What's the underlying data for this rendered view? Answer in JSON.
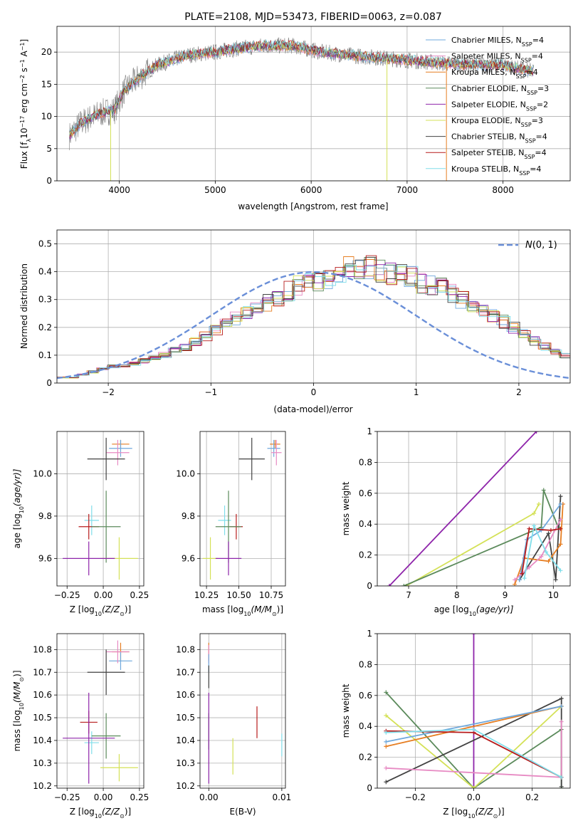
{
  "chart_data": [
    {
      "id": "spectrum",
      "type": "line",
      "title": "PLATE=2108, MJD=53473, FIBERID=0063, z=0.087",
      "xlabel": "wavelength [Angstrom, rest frame]",
      "ylabel_parts": {
        "a": "Flux [f",
        "b": "λ",
        "c": "10",
        "d": "−17",
        "e": " erg cm",
        "f": "−2",
        "g": " s",
        "h": "−1",
        "i": " A",
        "j": "−1",
        "k": "]"
      },
      "xlim": [
        3350,
        8700
      ],
      "ylim": [
        0,
        24
      ],
      "xticks": [
        4000,
        5000,
        6000,
        7000,
        8000
      ],
      "yticks": [
        0,
        5,
        10,
        15,
        20
      ],
      "legend": {
        "position": "top-right",
        "sub": "SSP",
        "entries": [
          {
            "model": "Chabrier MILES, N",
            "n": "=4",
            "color": "#6fa8dc"
          },
          {
            "model": "Salpeter MILES, N",
            "n": "=4",
            "color": "#e78ac3"
          },
          {
            "model": "Kroupa MILES, N",
            "n": "=4",
            "color": "#e67e22"
          },
          {
            "model": "Chabrier ELODIE, N",
            "n": "=3",
            "color": "#5b8a5b"
          },
          {
            "model": "Salpeter ELODIE, N",
            "n": "=2",
            "color": "#8e24aa"
          },
          {
            "model": "Kroupa ELODIE, N",
            "n": "=3",
            "color": "#d4e157"
          },
          {
            "model": "Chabrier STELIB, N",
            "n": "=4",
            "color": "#424242"
          },
          {
            "model": "Salpeter STELIB, N",
            "n": "=4",
            "color": "#b71c1c"
          },
          {
            "model": "Kroupa STELIB, N",
            "n": "=4",
            "color": "#80deea"
          }
        ]
      },
      "continuum_points": [
        [
          3480,
          7
        ],
        [
          3600,
          9
        ],
        [
          3800,
          10.5
        ],
        [
          3950,
          11
        ],
        [
          4050,
          14
        ],
        [
          4200,
          16
        ],
        [
          4400,
          18
        ],
        [
          4700,
          19.5
        ],
        [
          5000,
          20
        ],
        [
          5200,
          20.5
        ],
        [
          5500,
          21
        ],
        [
          5800,
          21
        ],
        [
          6100,
          20
        ],
        [
          6400,
          19.5
        ],
        [
          6800,
          19
        ],
        [
          7200,
          18.5
        ],
        [
          7600,
          18
        ],
        [
          8000,
          18
        ],
        [
          8300,
          17
        ]
      ],
      "data_series_color": "#7f7f7f",
      "artifacts": [
        {
          "x": 6790,
          "y_low": 0
        },
        {
          "x": 7410,
          "y_low": 0
        },
        {
          "x": 3910,
          "y_low": 0
        }
      ]
    },
    {
      "id": "residuals",
      "type": "bar",
      "xlabel": "(data-model)/error",
      "ylabel": "Normed distribution",
      "xlim": [
        -2.5,
        2.5
      ],
      "ylim": [
        0,
        0.55
      ],
      "xticks": [
        -2,
        -1,
        0,
        1,
        2
      ],
      "yticks": [
        0.0,
        0.1,
        0.2,
        0.3,
        0.4,
        0.5
      ],
      "legend": {
        "position": "top-right",
        "label": "N(0, 1)"
      },
      "bin_width": 0.1,
      "bin_start": -2.5,
      "histogram_values": [
        0.02,
        0.02,
        0.03,
        0.04,
        0.05,
        0.06,
        0.06,
        0.07,
        0.08,
        0.09,
        0.1,
        0.12,
        0.13,
        0.15,
        0.17,
        0.19,
        0.21,
        0.23,
        0.25,
        0.27,
        0.29,
        0.31,
        0.33,
        0.35,
        0.36,
        0.37,
        0.38,
        0.39,
        0.41,
        0.42,
        0.42,
        0.4,
        0.39,
        0.39,
        0.38,
        0.36,
        0.35,
        0.34,
        0.32,
        0.3,
        0.28,
        0.26,
        0.24,
        0.22,
        0.2,
        0.18,
        0.15,
        0.13,
        0.11,
        0.1
      ],
      "series_colors": [
        "#6fa8dc",
        "#e78ac3",
        "#e67e22",
        "#5b8a5b",
        "#8e24aa",
        "#d4e157",
        "#424242",
        "#b71c1c",
        "#80deea"
      ],
      "gaussian_color": "#6a8fd8"
    },
    {
      "id": "age_vs_Z",
      "type": "scatter",
      "xlabel": "Z [log",
      "xlabel_sub": "10",
      "xlabel_tail": "(Z/Z",
      "xlabel_sun": "⊙",
      "xlabel_end": ")]",
      "ylabel": "age  [log",
      "ylabel_sub": "10",
      "ylabel_tail": "(age/yr)]",
      "xlim": [
        -0.32,
        0.28
      ],
      "ylim": [
        9.47,
        10.2
      ],
      "xticks": [
        -0.25,
        0.0,
        0.25
      ],
      "xtick_labels": [
        "−0.25",
        "0.00",
        "0.25"
      ],
      "yticks": [
        9.6,
        9.8,
        10.0
      ],
      "yticklabels": [
        "9.6",
        "9.8",
        "10.0"
      ],
      "points": [
        {
          "x": 0.12,
          "y": 10.14,
          "xerr": 0.06,
          "yerr": 0.02,
          "color": "#e67e22"
        },
        {
          "x": 0.12,
          "y": 10.12,
          "xerr": 0.08,
          "yerr": 0.04,
          "color": "#6fa8dc"
        },
        {
          "x": 0.1,
          "y": 10.1,
          "xerr": 0.08,
          "yerr": 0.06,
          "color": "#e78ac3"
        },
        {
          "x": 0.02,
          "y": 10.07,
          "xerr": 0.13,
          "yerr": 0.1,
          "color": "#424242"
        },
        {
          "x": -0.08,
          "y": 9.78,
          "xerr": 0.05,
          "yerr": 0.07,
          "color": "#80deea"
        },
        {
          "x": -0.1,
          "y": 9.75,
          "xerr": 0.07,
          "yerr": 0.06,
          "color": "#b71c1c"
        },
        {
          "x": 0.02,
          "y": 9.75,
          "xerr": 0.1,
          "yerr": 0.17,
          "color": "#5b8a5b"
        },
        {
          "x": 0.11,
          "y": 9.6,
          "xerr": 0.13,
          "yerr": 0.1,
          "color": "#d4e157"
        },
        {
          "x": -0.1,
          "y": 9.6,
          "xerr": 0.18,
          "yerr": 0.08,
          "color": "#8e24aa"
        }
      ]
    },
    {
      "id": "age_vs_mass",
      "type": "scatter",
      "xlabel": "mass [log",
      "xlabel_sub": "10",
      "xlabel_tail": "(M/M",
      "xlabel_sun": "⊙",
      "xlabel_end": ")]",
      "xlim": [
        10.2,
        10.86
      ],
      "ylim": [
        9.47,
        10.2
      ],
      "xticks": [
        10.25,
        10.5,
        10.75
      ],
      "xtick_labels": [
        "10.25",
        "10.50",
        "10.75"
      ],
      "yticks": [
        9.6,
        9.8,
        10.0
      ],
      "yticklabels": [
        "9.6",
        "9.8",
        "10.0"
      ],
      "points": [
        {
          "x": 10.78,
          "y": 10.14,
          "xerr": 0.04,
          "yerr": 0.02,
          "color": "#e67e22"
        },
        {
          "x": 10.77,
          "y": 10.12,
          "xerr": 0.05,
          "yerr": 0.04,
          "color": "#6fa8dc"
        },
        {
          "x": 10.79,
          "y": 10.1,
          "xerr": 0.04,
          "yerr": 0.06,
          "color": "#e78ac3"
        },
        {
          "x": 10.6,
          "y": 10.07,
          "xerr": 0.1,
          "yerr": 0.1,
          "color": "#424242"
        },
        {
          "x": 10.39,
          "y": 9.78,
          "xerr": 0.05,
          "yerr": 0.07,
          "color": "#80deea"
        },
        {
          "x": 10.48,
          "y": 9.75,
          "xerr": 0.05,
          "yerr": 0.06,
          "color": "#b71c1c"
        },
        {
          "x": 10.42,
          "y": 9.75,
          "xerr": 0.1,
          "yerr": 0.17,
          "color": "#5b8a5b"
        },
        {
          "x": 10.28,
          "y": 9.6,
          "xerr": 0.06,
          "yerr": 0.1,
          "color": "#d4e157"
        },
        {
          "x": 10.42,
          "y": 9.6,
          "xerr": 0.1,
          "yerr": 0.08,
          "color": "#8e24aa"
        }
      ]
    },
    {
      "id": "weight_vs_age",
      "type": "line",
      "xlabel": "age  [log",
      "xlabel_sub": "10",
      "xlabel_tail": "(age/yr)]",
      "ylabel": "mass weight",
      "xlim": [
        6.35,
        10.35
      ],
      "ylim": [
        0,
        1
      ],
      "xticks": [
        7,
        8,
        9,
        10
      ],
      "yticks": [
        0.0,
        0.2,
        0.4,
        0.6,
        0.8,
        1.0
      ],
      "series": [
        {
          "color": "#8e24aa",
          "x": [
            6.6,
            9.65
          ],
          "y": [
            0.0,
            1.0
          ]
        },
        {
          "color": "#d4e157",
          "x": [
            6.95,
            9.6,
            9.7
          ],
          "y": [
            0.0,
            0.47,
            0.53
          ]
        },
        {
          "color": "#5b8a5b",
          "x": [
            6.9,
            9.75,
            9.8,
            10.1
          ],
          "y": [
            0.0,
            0.38,
            0.62,
            0.38
          ]
        },
        {
          "color": "#424242",
          "x": [
            9.3,
            9.9,
            10.05,
            10.15
          ],
          "y": [
            0.04,
            0.34,
            0.04,
            0.58
          ]
        },
        {
          "color": "#e67e22",
          "x": [
            9.2,
            9.4,
            9.9,
            10.15,
            10.2
          ],
          "y": [
            0.01,
            0.18,
            0.16,
            0.27,
            0.53
          ]
        },
        {
          "color": "#6fa8dc",
          "x": [
            9.3,
            9.45,
            9.75,
            10.15
          ],
          "y": [
            0.04,
            0.3,
            0.36,
            0.53
          ]
        },
        {
          "color": "#e78ac3",
          "x": [
            9.2,
            9.5,
            9.75,
            10.15
          ],
          "y": [
            0.04,
            0.12,
            0.19,
            0.43
          ]
        },
        {
          "color": "#b71c1c",
          "x": [
            9.35,
            9.5,
            9.95,
            10.15
          ],
          "y": [
            0.08,
            0.37,
            0.36,
            0.37
          ]
        },
        {
          "color": "#80deea",
          "x": [
            9.4,
            9.6,
            9.85,
            10.15
          ],
          "y": [
            0.05,
            0.39,
            0.22,
            0.1
          ]
        }
      ]
    },
    {
      "id": "mass_vs_Z",
      "type": "scatter",
      "xlabel": "Z [log",
      "xlabel_sub": "10",
      "xlabel_tail": "(Z/Z",
      "xlabel_sun": "⊙",
      "xlabel_end": ")]",
      "ylabel": "mass [log",
      "ylabel_sub": "10",
      "ylabel_tail": "(M/M",
      "ylabel_sun": "⊙",
      "ylabel_end": ")]",
      "xlim": [
        -0.32,
        0.28
      ],
      "ylim": [
        10.19,
        10.87
      ],
      "xticks": [
        -0.25,
        0.0,
        0.25
      ],
      "xtick_labels": [
        "−0.25",
        "0.00",
        "0.25"
      ],
      "yticks": [
        10.2,
        10.3,
        10.4,
        10.5,
        10.6,
        10.7,
        10.8
      ],
      "yticklabels": [
        "10.2",
        "10.3",
        "10.4",
        "10.5",
        "10.6",
        "10.7",
        "10.8"
      ],
      "points": [
        {
          "x": 0.12,
          "y": 10.79,
          "xerr": 0.06,
          "yerr": 0.04,
          "color": "#e67e22"
        },
        {
          "x": 0.12,
          "y": 10.75,
          "xerr": 0.08,
          "yerr": 0.04,
          "color": "#6fa8dc"
        },
        {
          "x": 0.1,
          "y": 10.79,
          "xerr": 0.08,
          "yerr": 0.05,
          "color": "#e78ac3"
        },
        {
          "x": 0.02,
          "y": 10.7,
          "xerr": 0.13,
          "yerr": 0.1,
          "color": "#424242"
        },
        {
          "x": -0.08,
          "y": 10.39,
          "xerr": 0.05,
          "yerr": 0.05,
          "color": "#80deea"
        },
        {
          "x": -0.1,
          "y": 10.48,
          "xerr": 0.06,
          "yerr": 0.05,
          "color": "#b71c1c"
        },
        {
          "x": 0.02,
          "y": 10.42,
          "xerr": 0.1,
          "yerr": 0.1,
          "color": "#5b8a5b"
        },
        {
          "x": 0.11,
          "y": 10.28,
          "xerr": 0.13,
          "yerr": 0.06,
          "color": "#d4e157"
        },
        {
          "x": -0.1,
          "y": 10.41,
          "xerr": 0.18,
          "yerr": 0.2,
          "color": "#8e24aa"
        }
      ]
    },
    {
      "id": "mass_vs_EBV",
      "type": "scatter",
      "xlabel": "E(B-V)",
      "xlim": [
        -0.0012,
        0.0105
      ],
      "ylim": [
        10.19,
        10.87
      ],
      "xticks": [
        0.0,
        0.01
      ],
      "xtick_labels": [
        "0.00",
        "0.01"
      ],
      "yticks": [
        10.2,
        10.3,
        10.4,
        10.5,
        10.6,
        10.7,
        10.8
      ],
      "yticklabels": [
        "10.2",
        "10.3",
        "10.4",
        "10.5",
        "10.6",
        "10.7",
        "10.8"
      ],
      "points": [
        {
          "x": 0.0,
          "y": 10.79,
          "xerr": 0,
          "yerr": 0.04,
          "color": "#e67e22"
        },
        {
          "x": 0.0,
          "y": 10.78,
          "xerr": 0,
          "yerr": 0.04,
          "color": "#e78ac3"
        },
        {
          "x": 0.0,
          "y": 10.74,
          "xerr": 0,
          "yerr": 0.04,
          "color": "#6fa8dc"
        },
        {
          "x": 0.0,
          "y": 10.68,
          "xerr": 0,
          "yerr": 0.05,
          "color": "#424242"
        },
        {
          "x": 0.0,
          "y": 10.44,
          "xerr": 0,
          "yerr": 0.08,
          "color": "#5b8a5b"
        },
        {
          "x": 0.0,
          "y": 10.41,
          "xerr": 0,
          "yerr": 0.2,
          "color": "#8e24aa"
        },
        {
          "x": 0.0033,
          "y": 10.33,
          "xerr": 0,
          "yerr": 0.08,
          "color": "#d4e157"
        },
        {
          "x": 0.0066,
          "y": 10.48,
          "xerr": 0,
          "yerr": 0.07,
          "color": "#b71c1c"
        },
        {
          "x": 0.01,
          "y": 10.38,
          "xerr": 0,
          "yerr": 0.05,
          "color": "#80deea"
        }
      ]
    },
    {
      "id": "weight_vs_Z",
      "type": "line",
      "xlabel": "Z [log",
      "xlabel_sub": "10",
      "xlabel_tail": "(Z/Z",
      "xlabel_sun": "⊙",
      "xlabel_end": ")]",
      "ylabel": "mass weight",
      "xlim": [
        -0.33,
        0.33
      ],
      "ylim": [
        0,
        1
      ],
      "xticks": [
        -0.2,
        0.0,
        0.2
      ],
      "xtick_labels": [
        "−0.2",
        "0.0",
        "0.2"
      ],
      "yticks": [
        0.0,
        0.2,
        0.4,
        0.6,
        0.8,
        1.0
      ],
      "series": [
        {
          "color": "#8e24aa",
          "x": [
            0.0,
            0.0
          ],
          "y": [
            0.0,
            1.0
          ]
        },
        {
          "color": "#5b8a5b",
          "x": [
            -0.3,
            0.0,
            0.3,
            0.3
          ],
          "y": [
            0.62,
            0.0,
            0.38,
            0.0
          ]
        },
        {
          "color": "#d4e157",
          "x": [
            -0.3,
            0.0,
            0.3
          ],
          "y": [
            0.47,
            0.0,
            0.53
          ]
        },
        {
          "color": "#424242",
          "x": [
            -0.3,
            0.3,
            0.3
          ],
          "y": [
            0.04,
            0.58,
            0.01
          ]
        },
        {
          "color": "#e67e22",
          "x": [
            -0.3,
            0.3
          ],
          "y": [
            0.27,
            0.53
          ]
        },
        {
          "color": "#6fa8dc",
          "x": [
            -0.3,
            0.3
          ],
          "y": [
            0.3,
            0.53
          ]
        },
        {
          "color": "#e78ac3",
          "x": [
            -0.3,
            0.3,
            0.3
          ],
          "y": [
            0.13,
            0.07,
            0.43
          ]
        },
        {
          "color": "#b71c1c",
          "x": [
            -0.3,
            0.0,
            0.3
          ],
          "y": [
            0.37,
            0.36,
            0.07
          ]
        },
        {
          "color": "#80deea",
          "x": [
            -0.3,
            0.0,
            0.3
          ],
          "y": [
            0.36,
            0.38,
            0.07
          ]
        }
      ]
    }
  ]
}
